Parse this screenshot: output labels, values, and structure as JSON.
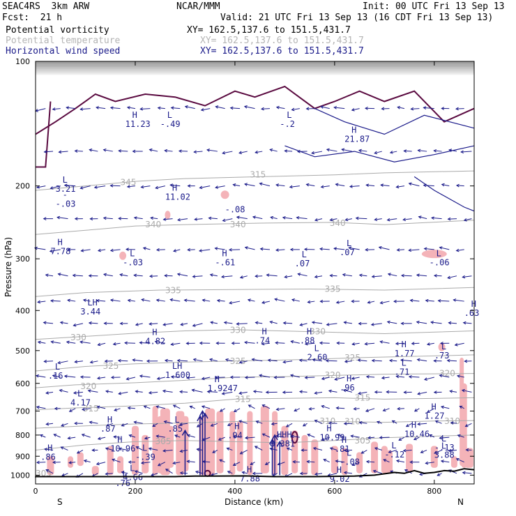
{
  "header": {
    "model": "SEAC4RS  3km ARW",
    "org": "NCAR/MMM",
    "init": "Init: 00 UTC Fri 13 Sep 13",
    "fcst": "Fcst:  21 h",
    "valid": "Valid: 21 UTC Fri 13 Sep 13 (16 CDT Fri 13 Sep 13)",
    "field1_name": "Potential vorticity",
    "field1_xy": "XY= 162.5,137.6 to 151.5,431.7",
    "field2_name": "Potential temperature",
    "field2_xy": "XY= 162.5,137.6 to 151.5,431.7",
    "field3_name": "Horizontal wind speed",
    "field3_xy": "XY= 162.5,137.6 to 151.5,431.7"
  },
  "colors": {
    "pv_shading": "#f4b3b8",
    "pv_contour": "#5a0a40",
    "theta_contour": "#aaaaaa",
    "wind": "#1b1b8a",
    "field2_text": "#b5b5b5",
    "field3_text": "#1b1b8a",
    "terrain": "#000000"
  },
  "chart_data": {
    "type": "cross-section",
    "xlabel": "Distance (km)",
    "ylabel": "Pressure (hPa)",
    "xlim": [
      0,
      880
    ],
    "ylim": [
      1050,
      100
    ],
    "y_log": true,
    "x_ticks": [
      "0",
      "200",
      "400",
      "600",
      "800"
    ],
    "x_tick_values": [
      0,
      200,
      400,
      600,
      800
    ],
    "y_ticks": [
      "100",
      "200",
      "300",
      "400",
      "500",
      "600",
      "700",
      "800",
      "900",
      "1000"
    ],
    "y_tick_values": [
      100,
      200,
      300,
      400,
      500,
      600,
      700,
      800,
      900,
      1000
    ],
    "endpoints": {
      "left": "S",
      "right": "N"
    },
    "theta_contours": [
      {
        "label": "345",
        "points": [
          [
            0,
            205
          ],
          [
            100,
            200
          ],
          [
            200,
            195
          ],
          [
            300,
            192
          ],
          [
            450,
            190
          ],
          [
            600,
            188
          ],
          [
            700,
            186
          ],
          [
            880,
            184
          ]
        ],
        "label_pos": [
          170,
          196
        ]
      },
      {
        "label": "340",
        "points": [
          [
            0,
            262
          ],
          [
            100,
            256
          ],
          [
            200,
            250
          ],
          [
            300,
            248
          ],
          [
            450,
            246
          ],
          [
            600,
            245
          ],
          [
            700,
            248
          ],
          [
            880,
            242
          ]
        ],
        "label_pos": [
          220,
          248
        ]
      },
      {
        "label": "335",
        "points": [
          [
            0,
            370
          ],
          [
            100,
            362
          ],
          [
            250,
            357
          ],
          [
            400,
            356
          ],
          [
            550,
            355
          ],
          [
            700,
            357
          ],
          [
            880,
            352
          ]
        ],
        "label_pos": [
          260,
          358
        ]
      },
      {
        "label": "330",
        "points": [
          [
            0,
            470
          ],
          [
            100,
            462
          ],
          [
            200,
            454
          ],
          [
            300,
            448
          ],
          [
            400,
            445
          ],
          [
            550,
            450
          ],
          [
            700,
            455
          ],
          [
            880,
            448
          ]
        ],
        "label_pos": [
          70,
          465
        ]
      },
      {
        "label": "325",
        "points": [
          [
            0,
            560
          ],
          [
            100,
            546
          ],
          [
            200,
            538
          ],
          [
            300,
            533
          ],
          [
            400,
            530
          ],
          [
            550,
            525
          ],
          [
            650,
            520
          ],
          [
            800,
            515
          ],
          [
            880,
            512
          ]
        ],
        "label_pos": [
          135,
          545
        ]
      },
      {
        "label": "320",
        "points": [
          [
            0,
            615
          ],
          [
            80,
            605
          ],
          [
            200,
            598
          ],
          [
            300,
            590
          ],
          [
            400,
            580
          ],
          [
            500,
            578
          ],
          [
            600,
            574
          ],
          [
            700,
            570
          ],
          [
            880,
            568
          ]
        ],
        "label_pos": [
          90,
          610
        ]
      },
      {
        "label": "315",
        "points": [
          [
            0,
            695
          ],
          [
            80,
            688
          ],
          [
            200,
            680
          ],
          [
            300,
            670
          ],
          [
            400,
            655
          ],
          [
            500,
            652
          ],
          [
            600,
            650
          ],
          [
            700,
            655
          ],
          [
            880,
            650
          ]
        ],
        "label_pos": [
          95,
          690
        ]
      },
      {
        "label": "310",
        "points": [
          [
            0,
            770
          ],
          [
            100,
            760
          ],
          [
            200,
            752
          ],
          [
            300,
            748
          ],
          [
            400,
            742
          ],
          [
            500,
            740
          ],
          [
            600,
            742
          ],
          [
            700,
            745
          ],
          [
            800,
            740
          ],
          [
            880,
            738
          ]
        ],
        "label_pos": [
          620,
          742
        ]
      },
      {
        "label": "305",
        "points": [
          [
            0,
            870
          ],
          [
            100,
            845
          ],
          [
            200,
            830
          ],
          [
            300,
            825
          ],
          [
            400,
            830
          ],
          [
            500,
            835
          ],
          [
            600,
            825
          ],
          [
            700,
            812
          ],
          [
            800,
            805
          ],
          [
            880,
            800
          ]
        ],
        "label_pos": [
          640,
          826
        ]
      }
    ],
    "theta_labels_extra": [
      {
        "label": "315",
        "x": 430,
        "p": 188
      },
      {
        "label": "340",
        "x": 390,
        "p": 248
      },
      {
        "label": "340",
        "x": 590,
        "p": 246
      },
      {
        "label": "335",
        "x": 580,
        "p": 355
      },
      {
        "label": "330",
        "x": 550,
        "p": 450
      },
      {
        "label": "330",
        "x": 390,
        "p": 446
      },
      {
        "label": "325",
        "x": 390,
        "p": 530
      },
      {
        "label": "325",
        "x": 620,
        "p": 520
      },
      {
        "label": "320",
        "x": 580,
        "p": 573
      },
      {
        "label": "320",
        "x": 810,
        "p": 568
      },
      {
        "label": "315",
        "x": 400,
        "p": 655
      },
      {
        "label": "315",
        "x": 640,
        "p": 650
      },
      {
        "label": "310",
        "x": 570,
        "p": 740
      },
      {
        "label": "310",
        "x": 820,
        "p": 740
      },
      {
        "label": "305",
        "x": 0,
        "p": 990
      },
      {
        "label": "305",
        "x": 240,
        "p": 828
      }
    ],
    "extrema": [
      {
        "t": "H",
        "v": "11.23",
        "x": 180,
        "p": 138
      },
      {
        "t": "L",
        "v": "-.49",
        "x": 250,
        "p": 138
      },
      {
        "t": "L",
        "v": "-.2",
        "x": 490,
        "p": 138
      },
      {
        "t": "H",
        "v": "21.87",
        "x": 620,
        "p": 150
      },
      {
        "t": "L",
        "v": "3.21",
        "x": 40,
        "p": 198
      },
      {
        "t": "-",
        "v": "-.03",
        "x": 40,
        "p": 215
      },
      {
        "t": "H",
        "v": "11.02",
        "x": 260,
        "p": 207
      },
      {
        "t": "",
        "v": "-.08",
        "x": 380,
        "p": 222
      },
      {
        "t": "H",
        "v": "7.78",
        "x": 30,
        "p": 280
      },
      {
        "t": "L",
        "v": "-.03",
        "x": 175,
        "p": 298
      },
      {
        "t": "H",
        "v": "-.61",
        "x": 360,
        "p": 298
      },
      {
        "t": "L",
        "v": ".07",
        "x": 520,
        "p": 300
      },
      {
        "t": "L",
        "v": ".07",
        "x": 610,
        "p": 282
      },
      {
        "t": "L",
        "v": "-.06",
        "x": 790,
        "p": 298
      },
      {
        "t": "LH",
        "v": "3.44",
        "x": 90,
        "p": 392
      },
      {
        "t": "H",
        "v": ".63",
        "x": 860,
        "p": 395
      },
      {
        "t": "H",
        "v": "4.82",
        "x": 220,
        "p": 462
      },
      {
        "t": "H",
        "v": ".74",
        "x": 440,
        "p": 460
      },
      {
        "t": "H",
        "v": ".88",
        "x": 530,
        "p": 460
      },
      {
        "t": "L",
        "v": "2.60",
        "x": 545,
        "p": 505
      },
      {
        "t": "H",
        "v": "1.77",
        "x": 720,
        "p": 495
      },
      {
        "t": "L",
        "v": ".73",
        "x": 800,
        "p": 500
      },
      {
        "t": "L",
        "v": ".71",
        "x": 720,
        "p": 548
      },
      {
        "t": "L",
        "v": ".16",
        "x": 25,
        "p": 560
      },
      {
        "t": "LH",
        "v": "1.600",
        "x": 260,
        "p": 558
      },
      {
        "t": "H",
        "v": "1.9247",
        "x": 345,
        "p": 600
      },
      {
        "t": "H",
        "v": ".96",
        "x": 610,
        "p": 598
      },
      {
        "t": "L",
        "v": "4.17",
        "x": 70,
        "p": 650
      },
      {
        "t": "H",
        "v": "1.27",
        "x": 780,
        "p": 700
      },
      {
        "t": "H",
        "v": ".87",
        "x": 130,
        "p": 752
      },
      {
        "t": "L",
        "v": ".85",
        "x": 265,
        "p": 752
      },
      {
        "t": "H",
        "v": ".94",
        "x": 385,
        "p": 780
      },
      {
        "t": "H",
        "v": "10.99",
        "x": 570,
        "p": 790
      },
      {
        "t": "H",
        "v": "10.46",
        "x": 740,
        "p": 775
      },
      {
        "t": "HHH",
        "v": "8.381",
        "x": 470,
        "p": 818
      },
      {
        "t": "H",
        "v": "10.96",
        "x": 150,
        "p": 840
      },
      {
        "t": "H",
        "v": ".81",
        "x": 600,
        "p": 842
      },
      {
        "t": "L",
        "v": "-.13",
        "x": 800,
        "p": 835
      },
      {
        "t": "L",
        "v": "3.88",
        "x": 800,
        "p": 870
      },
      {
        "t": "L",
        "v": "-.39",
        "x": 200,
        "p": 880
      },
      {
        "t": "L",
        "v": "-.12",
        "x": 700,
        "p": 868
      },
      {
        "t": "H",
        "v": ".86",
        "x": 10,
        "p": 880
      },
      {
        "t": "L",
        "v": "-.08",
        "x": 610,
        "p": 905
      },
      {
        "t": "L",
        "v": "4.66",
        "x": 175,
        "p": 985
      },
      {
        "t": "H",
        "v": "7.88",
        "x": 410,
        "p": 993
      },
      {
        "t": "H",
        "v": "9.02",
        "x": 590,
        "p": 995
      },
      {
        "t": "L",
        "v": ".76",
        "x": 160,
        "p": 1018
      }
    ]
  }
}
